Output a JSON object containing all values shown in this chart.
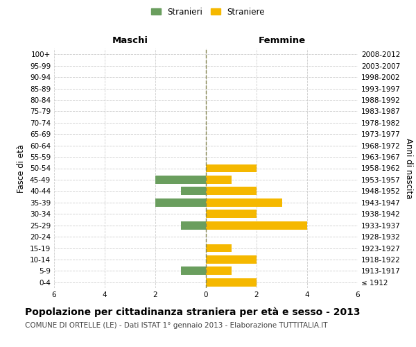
{
  "age_groups": [
    "100+",
    "95-99",
    "90-94",
    "85-89",
    "80-84",
    "75-79",
    "70-74",
    "65-69",
    "60-64",
    "55-59",
    "50-54",
    "45-49",
    "40-44",
    "35-39",
    "30-34",
    "25-29",
    "20-24",
    "15-19",
    "10-14",
    "5-9",
    "0-4"
  ],
  "birth_years": [
    "≤ 1912",
    "1913-1917",
    "1918-1922",
    "1923-1927",
    "1928-1932",
    "1933-1937",
    "1938-1942",
    "1943-1947",
    "1948-1952",
    "1953-1957",
    "1958-1962",
    "1963-1967",
    "1968-1972",
    "1973-1977",
    "1978-1982",
    "1983-1987",
    "1988-1992",
    "1993-1997",
    "1998-2002",
    "2003-2007",
    "2008-2012"
  ],
  "males": [
    0,
    0,
    0,
    0,
    0,
    0,
    0,
    0,
    0,
    0,
    0,
    2,
    1,
    2,
    0,
    1,
    0,
    0,
    0,
    1,
    0
  ],
  "females": [
    0,
    0,
    0,
    0,
    0,
    0,
    0,
    0,
    0,
    0,
    2,
    1,
    2,
    3,
    2,
    4,
    0,
    1,
    2,
    1,
    2
  ],
  "male_color": "#6a9e5e",
  "female_color": "#f5b800",
  "bar_height": 0.72,
  "xlim": 6,
  "title": "Popolazione per cittadinanza straniera per età e sesso - 2013",
  "subtitle": "COMUNE DI ORTELLE (LE) - Dati ISTAT 1° gennaio 2013 - Elaborazione TUTTITALIA.IT",
  "ylabel_left": "Fasce di età",
  "ylabel_right": "Anni di nascita",
  "header_left": "Maschi",
  "header_right": "Femmine",
  "legend_stranieri": "Stranieri",
  "legend_straniere": "Straniere",
  "background_color": "#ffffff",
  "grid_color": "#cccccc",
  "title_fontsize": 10,
  "subtitle_fontsize": 7.5,
  "axis_label_fontsize": 8.5,
  "tick_fontsize": 7.5,
  "header_fontsize": 9.5
}
